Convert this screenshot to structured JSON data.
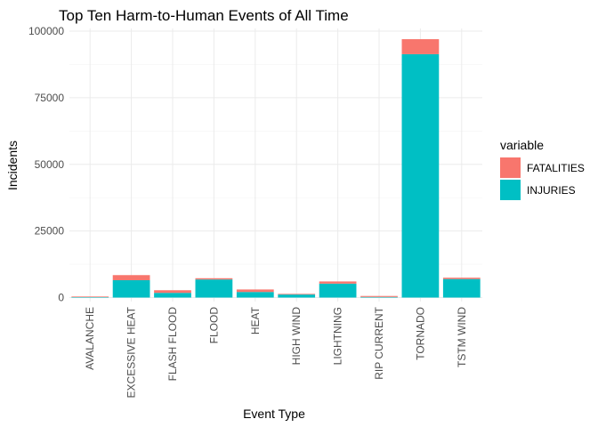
{
  "chart_data": {
    "type": "bar",
    "stacked": true,
    "title": "Top Ten Harm-to-Human Events of All Time",
    "xlabel": "Event Type",
    "ylabel": "Incidents",
    "categories": [
      "AVALANCHE",
      "EXCESSIVE HEAT",
      "FLASH FLOOD",
      "FLOOD",
      "HEAT",
      "HIGH WIND",
      "LIGHTNING",
      "RIP CURRENT",
      "TORNADO",
      "TSTM WIND"
    ],
    "series": [
      {
        "name": "INJURIES",
        "color": "#00BFC4",
        "values": [
          170,
          6525,
          1777,
          6789,
          2100,
          1137,
          5230,
          232,
          91346,
          6957
        ]
      },
      {
        "name": "FATALITIES",
        "color": "#F8766D",
        "values": [
          224,
          1903,
          978,
          470,
          937,
          248,
          816,
          368,
          5633,
          504
        ]
      }
    ],
    "ylim": [
      -1500,
      101000
    ],
    "yticks": [
      0,
      25000,
      50000,
      75000,
      100000
    ],
    "ytick_labels": [
      "0",
      "25000",
      "50000",
      "75000",
      "100000"
    ],
    "grid": true,
    "legend": {
      "title": "variable",
      "position": "right",
      "entries": [
        {
          "label": "FATALITIES",
          "color": "#F8766D"
        },
        {
          "label": "INJURIES",
          "color": "#00BFC4"
        }
      ]
    }
  }
}
